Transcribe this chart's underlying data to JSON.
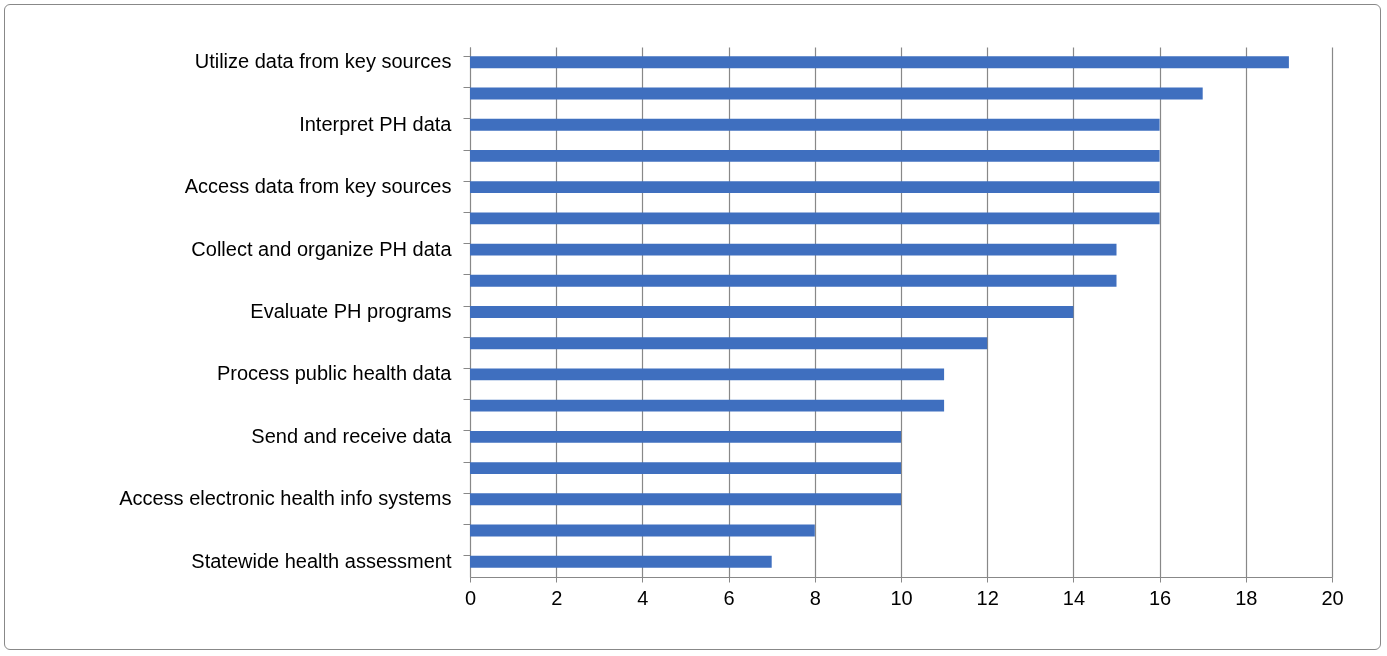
{
  "chart_data": {
    "type": "bar",
    "orientation": "horizontal",
    "categories": [
      "Utilize data from key sources",
      null,
      "Interpret PH data",
      null,
      "Access data from key sources",
      null,
      "Collect and organize PH data",
      null,
      "Evaluate PH programs",
      null,
      "Process public health data",
      null,
      "Send and receive data",
      null,
      "Access electronic health info systems",
      null,
      "Statewide health assessment"
    ],
    "values": [
      19,
      17,
      16,
      16,
      16,
      16,
      15,
      15,
      14,
      12,
      11,
      11,
      10,
      10,
      10,
      8,
      7
    ],
    "color": "#3f6fbf",
    "xlim": [
      0,
      20
    ],
    "xticks": [
      0,
      2,
      4,
      6,
      8,
      10,
      12,
      14,
      16,
      18,
      20
    ],
    "grid": "x"
  }
}
